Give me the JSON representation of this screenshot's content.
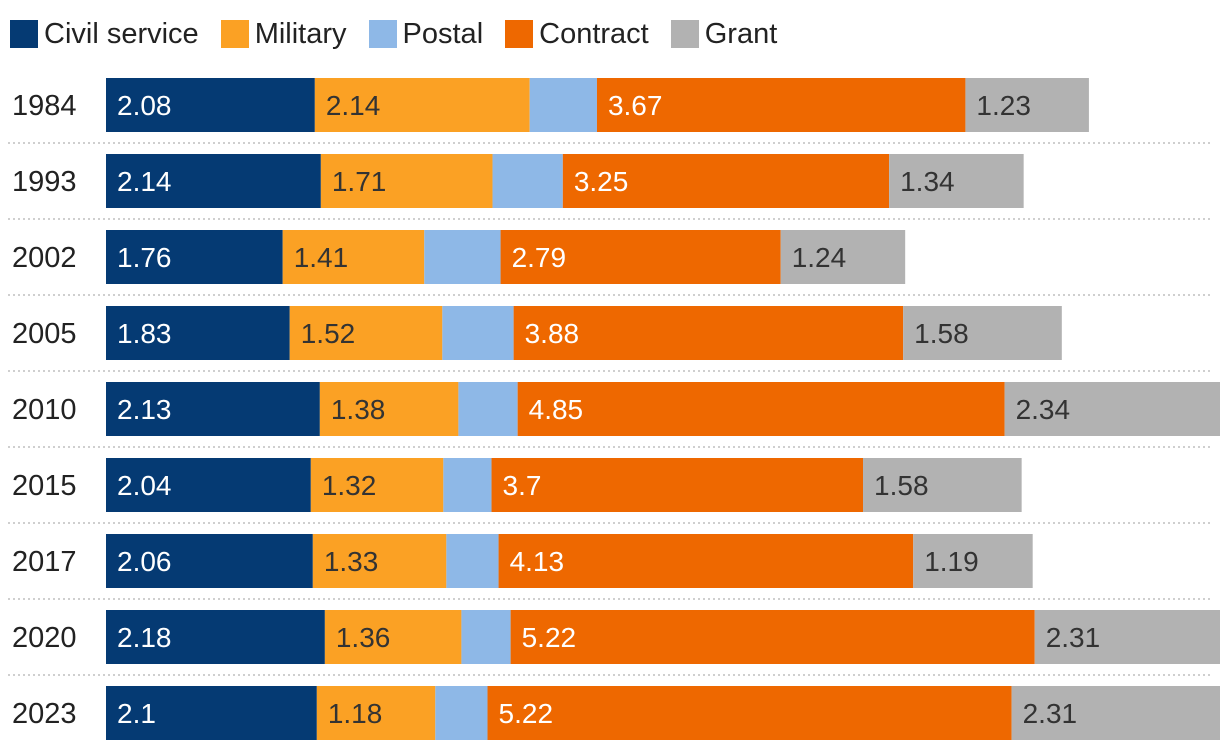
{
  "chart_data": {
    "type": "bar",
    "orientation": "horizontal",
    "stacked": true,
    "title": "",
    "xlabel": "",
    "ylabel": "",
    "categories": [
      "1984",
      "1993",
      "2002",
      "2005",
      "2010",
      "2015",
      "2017",
      "2020",
      "2023"
    ],
    "series": [
      {
        "name": "Civil service",
        "color": "#053A73",
        "label_color": "#ffffff",
        "values": [
          2.08,
          2.14,
          1.76,
          1.83,
          2.13,
          2.04,
          2.06,
          2.18,
          2.1
        ]
      },
      {
        "name": "Military",
        "color": "#FBA124",
        "label_color": "#333333",
        "values": [
          2.14,
          1.71,
          1.41,
          1.52,
          1.38,
          1.32,
          1.33,
          1.36,
          1.18
        ]
      },
      {
        "name": "Postal",
        "color": "#8EB8E7",
        "label_color": "#333333",
        "show_labels": false,
        "values": [
          0.67,
          0.7,
          0.76,
          0.71,
          0.59,
          0.48,
          0.52,
          0.49,
          0.52
        ]
      },
      {
        "name": "Contract",
        "color": "#EE6800",
        "label_color": "#ffffff",
        "values": [
          3.67,
          3.25,
          2.79,
          3.88,
          4.85,
          3.7,
          4.13,
          5.22,
          5.22
        ]
      },
      {
        "name": "Grant",
        "color": "#B2B2B2",
        "label_color": "#333333",
        "values": [
          1.23,
          1.34,
          1.24,
          1.58,
          2.34,
          1.58,
          1.19,
          2.31,
          2.31
        ]
      }
    ],
    "legend_position": "top-left",
    "grid": false
  }
}
